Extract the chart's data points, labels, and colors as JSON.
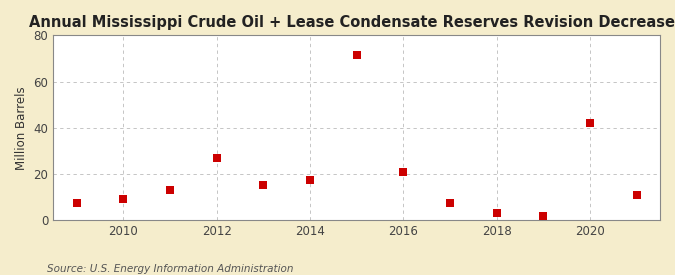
{
  "years": [
    2009,
    2010,
    2011,
    2012,
    2013,
    2014,
    2015,
    2016,
    2017,
    2018,
    2019,
    2020,
    2021
  ],
  "values": [
    7.5,
    9.0,
    13.0,
    27.0,
    15.0,
    17.5,
    71.5,
    21.0,
    7.5,
    3.0,
    2.0,
    42.0,
    11.0
  ],
  "title": "Annual Mississippi Crude Oil + Lease Condensate Reserves Revision Decreases",
  "ylabel": "Million Barrels",
  "source": "Source: U.S. Energy Information Administration",
  "marker_color": "#cc0000",
  "marker": "s",
  "marker_size": 36,
  "fig_background": "#f5edcc",
  "plot_background": "#ffffff",
  "grid_color": "#bbbbbb",
  "spine_color": "#888888",
  "ylim": [
    0,
    80
  ],
  "yticks": [
    0,
    20,
    40,
    60,
    80
  ],
  "xlim": [
    2008.5,
    2021.5
  ],
  "xticks": [
    2010,
    2012,
    2014,
    2016,
    2018,
    2020
  ],
  "title_fontsize": 10.5,
  "ylabel_fontsize": 8.5,
  "source_fontsize": 7.5,
  "tick_labelsize": 8.5
}
